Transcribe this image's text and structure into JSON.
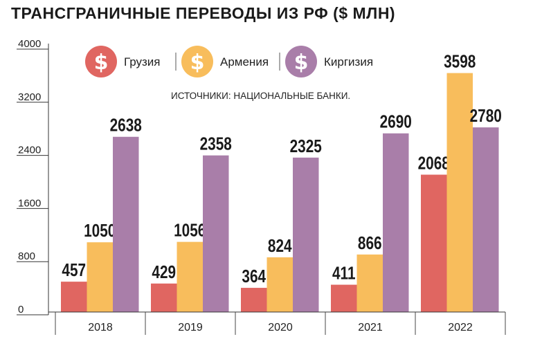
{
  "chart_data": {
    "type": "bar",
    "title": "ТРАНСГРАНИЧНЫЕ ПЕРЕВОДЫ ИЗ РФ ($ МЛН)",
    "subtitle": "ИСТОЧНИКИ: НАЦИОНАЛЬНЫЕ БАНКИ.",
    "categories": [
      "2018",
      "2019",
      "2020",
      "2021",
      "2022"
    ],
    "series": [
      {
        "name": "Грузия",
        "color": "#e06661",
        "values": [
          457,
          429,
          364,
          411,
          2068
        ]
      },
      {
        "name": "Армения",
        "color": "#f8bd5c",
        "values": [
          1050,
          1056,
          824,
          866,
          3598
        ]
      },
      {
        "name": "Киргизия",
        "color": "#a97ea9",
        "values": [
          2638,
          2358,
          2325,
          2690,
          2780
        ]
      }
    ],
    "yticks": [
      "0",
      "800",
      "1600",
      "2400",
      "3200",
      "4000"
    ],
    "ylim": [
      0,
      4000
    ],
    "legend_icon": "dollar-coin-icon",
    "legend_position": "top",
    "grid": false
  }
}
